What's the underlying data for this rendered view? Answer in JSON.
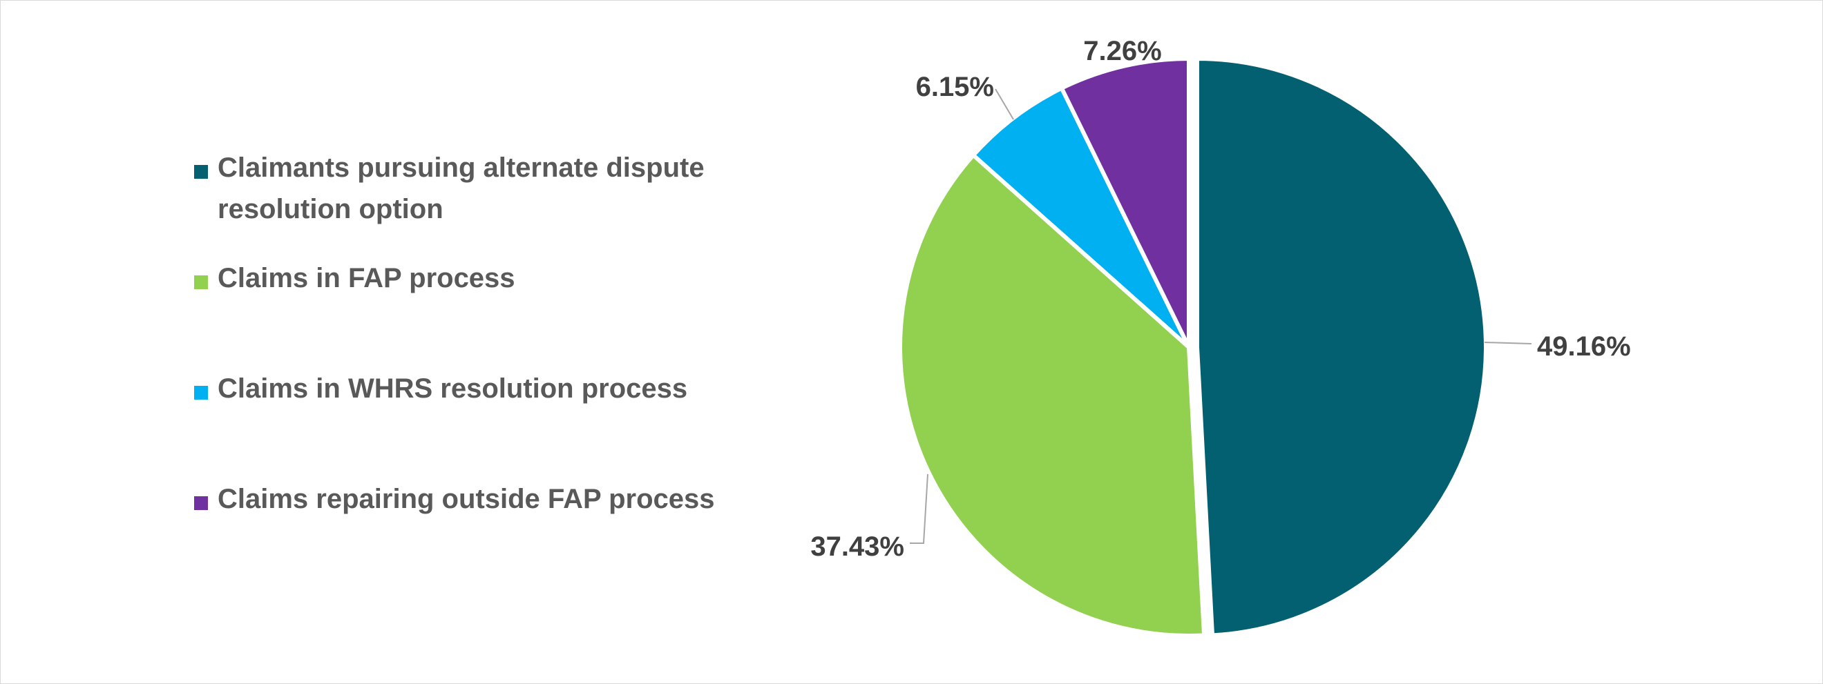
{
  "chart_data": {
    "type": "pie",
    "title": "",
    "slices": [
      {
        "label": "Claimants pursuing alternate dispute resolution option",
        "value": 49.16,
        "display": "49.16%",
        "color": "#026070"
      },
      {
        "label": "Claims in FAP process",
        "value": 37.43,
        "display": "37.43%",
        "color": "#92D050"
      },
      {
        "label": "Claims in WHRS resolution process",
        "value": 6.15,
        "display": "6.15%",
        "color": "#00B0F0"
      },
      {
        "label": "Claims repairing outside FAP process",
        "value": 7.26,
        "display": "7.26%",
        "color": "#7030A0"
      }
    ],
    "legend": {
      "position": "left",
      "items": [
        {
          "label": "Claimants pursuing alternate dispute resolution option",
          "color": "#026070"
        },
        {
          "label": "Claims in FAP process",
          "color": "#92D050"
        },
        {
          "label": "Claims in WHRS resolution process",
          "color": "#00B0F0"
        },
        {
          "label": "Claims repairing outside FAP process",
          "color": "#7030A0"
        }
      ]
    },
    "start_angle": "12 o'clock",
    "direction": "clockwise"
  }
}
